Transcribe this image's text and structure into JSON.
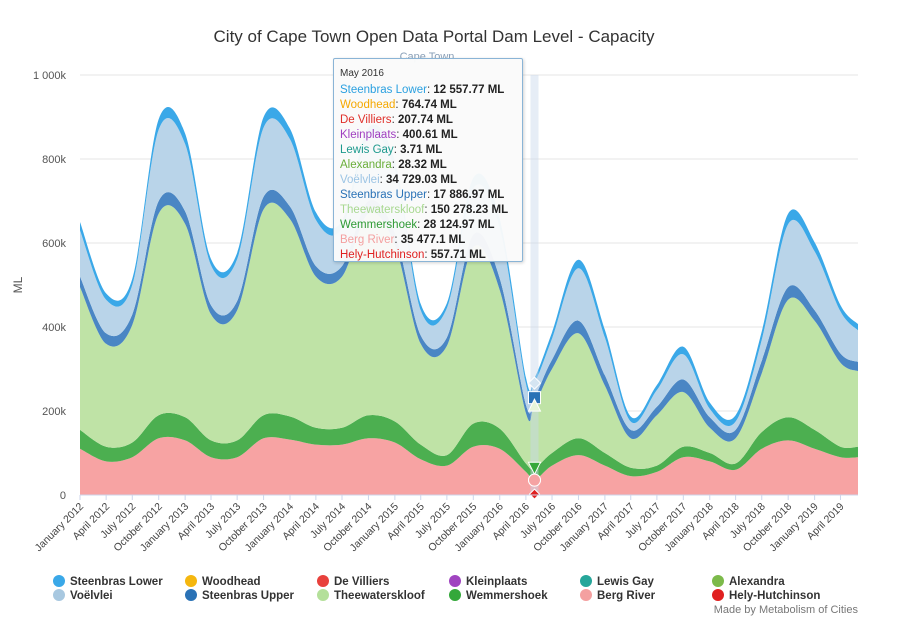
{
  "chart_data": {
    "type": "area",
    "stacked": true,
    "title": "City of Cape Town Open Data Portal Dam Level - Capacity",
    "subtitle": "Cape Town",
    "xlabel": "",
    "ylabel": "ML",
    "ylim": [
      0,
      1000000
    ],
    "yticks": [
      {
        "value": 0,
        "label": "0"
      },
      {
        "value": 200000,
        "label": "200k"
      },
      {
        "value": 400000,
        "label": "400k"
      },
      {
        "value": 600000,
        "label": "600k"
      },
      {
        "value": 800000,
        "label": "800k"
      },
      {
        "value": 1000000,
        "label": "1 000k"
      }
    ],
    "x": [
      "2012-01",
      "2012-04",
      "2012-07",
      "2012-10",
      "2013-01",
      "2013-04",
      "2013-07",
      "2013-10",
      "2014-01",
      "2014-04",
      "2014-07",
      "2014-10",
      "2015-01",
      "2015-04",
      "2015-07",
      "2015-10",
      "2016-01",
      "2016-04",
      "2016-05",
      "2016-07",
      "2016-10",
      "2017-01",
      "2017-04",
      "2017-07",
      "2017-10",
      "2018-01",
      "2018-04",
      "2018-07",
      "2018-10",
      "2019-01",
      "2019-04",
      "2019-06"
    ],
    "xtick_labels": [
      "January 2012",
      "April 2012",
      "July 2012",
      "October 2012",
      "January 2013",
      "April 2013",
      "July 2013",
      "October 2013",
      "January 2014",
      "April 2014",
      "July 2014",
      "October 2014",
      "January 2015",
      "April 2015",
      "July 2015",
      "October 2015",
      "January 2016",
      "April 2016",
      "July 2016",
      "October 2016",
      "January 2017",
      "April 2017",
      "July 2017",
      "October 2017",
      "January 2018",
      "April 2018",
      "July 2018",
      "October 2018",
      "January 2019",
      "April 2019"
    ],
    "series": [
      {
        "name": "Berg River",
        "color": "#f7a3a3",
        "values": [
          110000,
          80000,
          90000,
          135000,
          130000,
          90000,
          90000,
          135000,
          132000,
          120000,
          120000,
          135000,
          125000,
          85000,
          70000,
          115000,
          110000,
          55000,
          35477,
          70000,
          95000,
          70000,
          45000,
          55000,
          90000,
          80000,
          60000,
          110000,
          130000,
          110000,
          90000,
          90000
        ]
      },
      {
        "name": "Wemmershoek",
        "color": "#4caf50",
        "values": [
          45000,
          35000,
          35000,
          55000,
          55000,
          40000,
          40000,
          55000,
          55000,
          40000,
          40000,
          55000,
          50000,
          35000,
          25000,
          55000,
          48000,
          20000,
          28125,
          30000,
          40000,
          30000,
          20000,
          15000,
          25000,
          20000,
          15000,
          40000,
          55000,
          45000,
          25000,
          25000
        ]
      },
      {
        "name": "Theewaterskloof",
        "color": "#bfe3a6",
        "values": [
          340000,
          245000,
          280000,
          480000,
          460000,
          300000,
          310000,
          490000,
          470000,
          360000,
          360000,
          480000,
          420000,
          240000,
          260000,
          420000,
          330000,
          120000,
          150278,
          200000,
          250000,
          160000,
          70000,
          120000,
          130000,
          60000,
          60000,
          140000,
          280000,
          260000,
          200000,
          180000
        ]
      },
      {
        "name": "Steenbras Upper",
        "color": "#4a86c4",
        "values": [
          25000,
          25000,
          25000,
          30000,
          30000,
          22000,
          22000,
          30000,
          30000,
          25000,
          25000,
          30000,
          28000,
          20000,
          20000,
          30000,
          28000,
          20000,
          17887,
          22000,
          30000,
          25000,
          20000,
          20000,
          30000,
          25000,
          20000,
          30000,
          30000,
          25000,
          22000,
          22000
        ]
      },
      {
        "name": "Voëlvlei",
        "color": "#b9d4e9",
        "values": [
          110000,
          80000,
          70000,
          170000,
          160000,
          95000,
          100000,
          165000,
          160000,
          110000,
          90000,
          150000,
          150000,
          60000,
          70000,
          110000,
          120000,
          50000,
          34729,
          50000,
          125000,
          90000,
          20000,
          40000,
          60000,
          20000,
          20000,
          50000,
          150000,
          140000,
          100000,
          75000
        ]
      },
      {
        "name": "Steenbras Lower",
        "color": "#3aa8e8",
        "values": [
          20000,
          15000,
          15000,
          25000,
          25000,
          15000,
          15000,
          25000,
          25000,
          18000,
          18000,
          25000,
          22000,
          15000,
          12000,
          25000,
          22000,
          15000,
          12558,
          15000,
          20000,
          18000,
          12000,
          12000,
          18000,
          15000,
          15000,
          20000,
          25000,
          22000,
          15000,
          15000
        ]
      }
    ],
    "legend": [
      {
        "name": "Steenbras Lower",
        "color": "#3aa8e8"
      },
      {
        "name": "Woodhead",
        "color": "#f5b70f"
      },
      {
        "name": "De Villiers",
        "color": "#e8413c"
      },
      {
        "name": "Kleinplaats",
        "color": "#a044c0"
      },
      {
        "name": "Lewis Gay",
        "color": "#26a69a"
      },
      {
        "name": "Alexandra",
        "color": "#7cba4a"
      },
      {
        "name": "Voëlvlei",
        "color": "#a8c8e0"
      },
      {
        "name": "Steenbras Upper",
        "color": "#2a72b6"
      },
      {
        "name": "Theewaterskloof",
        "color": "#b4e09a"
      },
      {
        "name": "Wemmershoek",
        "color": "#34a83a"
      },
      {
        "name": "Berg River",
        "color": "#f4a0a0"
      },
      {
        "name": "Hely-Hutchinson",
        "color": "#e02020"
      }
    ],
    "legend_placement": "bottom",
    "credit": "Made by Metabolism of Cities",
    "tooltip": {
      "date": "May 2016",
      "rows": [
        {
          "name": "Steenbras Lower",
          "value": "12 557.77 ML",
          "color": "#2aa0e0"
        },
        {
          "name": "Woodhead",
          "value": "764.74 ML",
          "color": "#f5a800"
        },
        {
          "name": "De Villiers",
          "value": "207.74 ML",
          "color": "#e0302a"
        },
        {
          "name": "Kleinplaats",
          "value": "400.61 ML",
          "color": "#a040c0"
        },
        {
          "name": "Lewis Gay",
          "value": "3.71 ML",
          "color": "#1e9a8e"
        },
        {
          "name": "Alexandra",
          "value": "28.32 ML",
          "color": "#6aae3a"
        },
        {
          "name": "Voëlvlei",
          "value": "34 729.03 ML",
          "color": "#9cc4e4"
        },
        {
          "name": "Steenbras Upper",
          "value": "17 886.97 ML",
          "color": "#2a72b6"
        },
        {
          "name": "Theewaterskloof",
          "value": "150 278.23 ML",
          "color": "#a8d890"
        },
        {
          "name": "Wemmershoek",
          "value": "28 124.97 ML",
          "color": "#2e9a34"
        },
        {
          "name": "Berg River",
          "value": "35 477.1 ML",
          "color": "#f4a0a0"
        },
        {
          "name": "Hely-Hutchinson",
          "value": "557.71 ML",
          "color": "#e02020"
        }
      ]
    }
  }
}
